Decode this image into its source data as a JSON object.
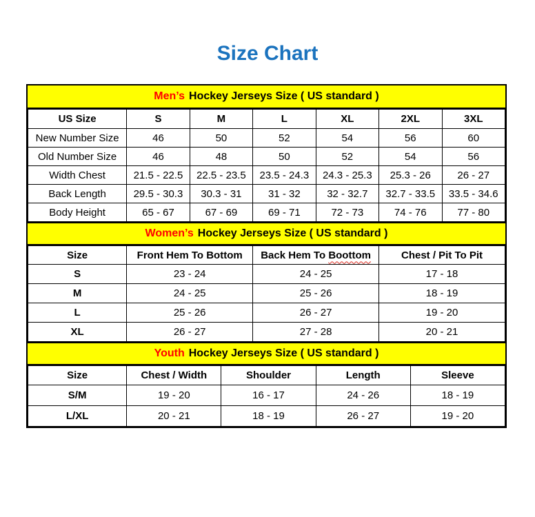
{
  "page": {
    "title": "Size Chart"
  },
  "colors": {
    "title_blue": "#1b73be",
    "band_yellow": "#ffff00",
    "accent_red": "#ff0000",
    "border_black": "#000000"
  },
  "sections": [
    {
      "id": "mens",
      "heading": {
        "accent": "Men’s",
        "rest": "Hockey Jerseys Size ( US standard )"
      },
      "columns": [
        "US Size",
        "S",
        "M",
        "L",
        "XL",
        "2XL",
        "3XL"
      ],
      "label_bold": false,
      "rows": [
        {
          "label": "New Number Size",
          "values": [
            "46",
            "50",
            "52",
            "54",
            "56",
            "60"
          ]
        },
        {
          "label": "Old Number Size",
          "values": [
            "46",
            "48",
            "50",
            "52",
            "54",
            "56"
          ]
        },
        {
          "label": "Width Chest",
          "values": [
            "21.5 - 22.5",
            "22.5 - 23.5",
            "23.5 - 24.3",
            "24.3 - 25.3",
            "25.3 - 26",
            "26 - 27"
          ]
        },
        {
          "label": "Back Length",
          "values": [
            "29.5 - 30.3",
            "30.3 - 31",
            "31 - 32",
            "32 - 32.7",
            "32.7 - 33.5",
            "33.5 - 34.6"
          ]
        },
        {
          "label": "Body Height",
          "values": [
            "65 - 67",
            "67 - 69",
            "69 - 71",
            "72 - 73",
            "74 - 76",
            "77 - 80"
          ]
        }
      ]
    },
    {
      "id": "womens",
      "heading": {
        "accent": "Women’s",
        "rest": "Hockey Jerseys Size ( US standard )"
      },
      "columns": [
        "Size",
        "Front Hem To Bottom",
        {
          "label": "Back Hem To",
          "squiggle": "Boottom"
        },
        "Chest / Pit To Pit"
      ],
      "label_bold": true,
      "rows": [
        {
          "label": "S",
          "values": [
            "23 - 24",
            "24 - 25",
            "17 - 18"
          ]
        },
        {
          "label": "M",
          "values": [
            "24 - 25",
            "25 - 26",
            "18 - 19"
          ]
        },
        {
          "label": "L",
          "values": [
            "25 - 26",
            "26 - 27",
            "19 - 20"
          ]
        },
        {
          "label": "XL",
          "values": [
            "26 - 27",
            "27 - 28",
            "20 - 21"
          ]
        }
      ]
    },
    {
      "id": "youth",
      "heading": {
        "accent": "Youth",
        "rest": "Hockey Jerseys Size ( US standard )"
      },
      "columns": [
        "Size",
        "Chest / Width",
        "Shoulder",
        "Length",
        "Sleeve"
      ],
      "label_bold": true,
      "rows": [
        {
          "label": "S/M",
          "values": [
            "19 - 20",
            "16 - 17",
            "24 - 26",
            "18 - 19"
          ]
        },
        {
          "label": "L/XL",
          "values": [
            "20 - 21",
            "18 - 19",
            "26 - 27",
            "19 - 20"
          ]
        }
      ]
    }
  ]
}
